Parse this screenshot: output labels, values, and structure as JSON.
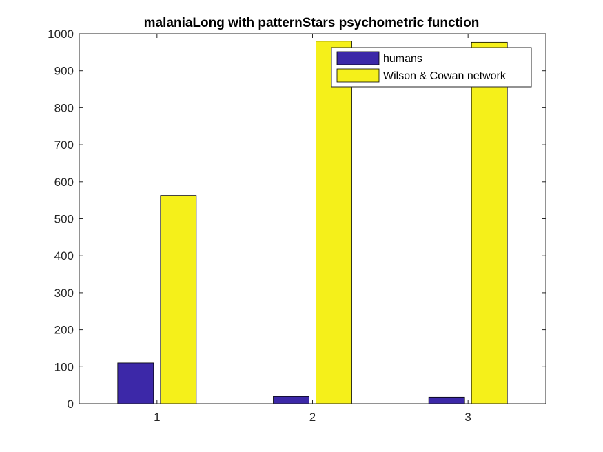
{
  "chart_data": {
    "type": "bar",
    "title": "malaniaLong with patternStars psychometric function",
    "xlabel": "",
    "ylabel": "",
    "categories": [
      "1",
      "2",
      "3"
    ],
    "series": [
      {
        "name": "humans",
        "color": "#3c28a8",
        "values": [
          110,
          20,
          18
        ]
      },
      {
        "name": "Wilson & Cowan network",
        "color": "#f5f01a",
        "values": [
          563,
          980,
          977
        ]
      }
    ],
    "ylim": [
      0,
      1000
    ],
    "yticks": [
      0,
      100,
      200,
      300,
      400,
      500,
      600,
      700,
      800,
      900,
      1000
    ],
    "grid": false,
    "legend_position": "top-right"
  }
}
